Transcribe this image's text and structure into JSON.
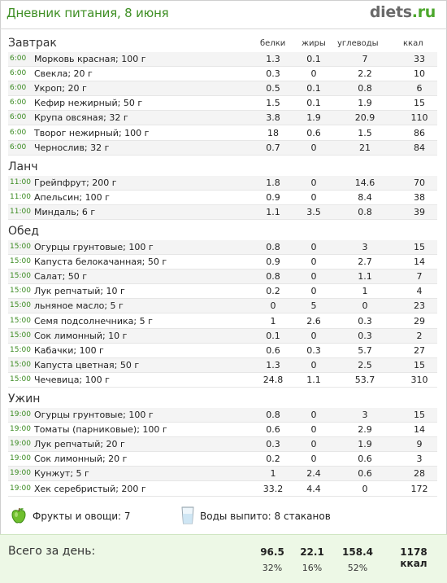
{
  "header": {
    "title": "Дневник питания, 8 июня",
    "logo_main": "diets",
    "logo_tld": ".ru"
  },
  "columns": {
    "protein": "белки",
    "fat": "жиры",
    "carbs": "углеводы",
    "kcal": "ккал"
  },
  "meals": [
    {
      "name": "Завтрак",
      "items": [
        {
          "time": "6:00",
          "food": "Морковь красная; 100 г",
          "p": "1.3",
          "f": "0.1",
          "c": "7",
          "k": "33"
        },
        {
          "time": "6:00",
          "food": "Свекла; 20 г",
          "p": "0.3",
          "f": "0",
          "c": "2.2",
          "k": "10"
        },
        {
          "time": "6:00",
          "food": "Укроп; 20 г",
          "p": "0.5",
          "f": "0.1",
          "c": "0.8",
          "k": "6"
        },
        {
          "time": "6:00",
          "food": "Кефир нежирный; 50 г",
          "p": "1.5",
          "f": "0.1",
          "c": "1.9",
          "k": "15"
        },
        {
          "time": "6:00",
          "food": "Крупа овсяная; 32 г",
          "p": "3.8",
          "f": "1.9",
          "c": "20.9",
          "k": "110"
        },
        {
          "time": "6:00",
          "food": "Творог нежирный; 100 г",
          "p": "18",
          "f": "0.6",
          "c": "1.5",
          "k": "86"
        },
        {
          "time": "6:00",
          "food": "Чернослив; 32 г",
          "p": "0.7",
          "f": "0",
          "c": "21",
          "k": "84"
        }
      ]
    },
    {
      "name": "Ланч",
      "items": [
        {
          "time": "11:00",
          "food": "Грейпфрут; 200 г",
          "p": "1.8",
          "f": "0",
          "c": "14.6",
          "k": "70"
        },
        {
          "time": "11:00",
          "food": "Апельсин; 100 г",
          "p": "0.9",
          "f": "0",
          "c": "8.4",
          "k": "38"
        },
        {
          "time": "11:00",
          "food": "Миндаль; 6 г",
          "p": "1.1",
          "f": "3.5",
          "c": "0.8",
          "k": "39"
        }
      ]
    },
    {
      "name": "Обед",
      "items": [
        {
          "time": "15:00",
          "food": "Огурцы грунтовые; 100 г",
          "p": "0.8",
          "f": "0",
          "c": "3",
          "k": "15"
        },
        {
          "time": "15:00",
          "food": "Капуста белокачанная; 50 г",
          "p": "0.9",
          "f": "0",
          "c": "2.7",
          "k": "14"
        },
        {
          "time": "15:00",
          "food": "Салат; 50 г",
          "p": "0.8",
          "f": "0",
          "c": "1.1",
          "k": "7"
        },
        {
          "time": "15:00",
          "food": "Лук репчатый; 10 г",
          "p": "0.2",
          "f": "0",
          "c": "1",
          "k": "4"
        },
        {
          "time": "15:00",
          "food": "льняное масло; 5 г",
          "p": "0",
          "f": "5",
          "c": "0",
          "k": "23"
        },
        {
          "time": "15:00",
          "food": "Семя подсолнечника; 5 г",
          "p": "1",
          "f": "2.6",
          "c": "0.3",
          "k": "29"
        },
        {
          "time": "15:00",
          "food": "Сок лимонный; 10 г",
          "p": "0.1",
          "f": "0",
          "c": "0.3",
          "k": "2"
        },
        {
          "time": "15:00",
          "food": "Кабачки; 100 г",
          "p": "0.6",
          "f": "0.3",
          "c": "5.7",
          "k": "27"
        },
        {
          "time": "15:00",
          "food": "Капуста цветная; 50 г",
          "p": "1.3",
          "f": "0",
          "c": "2.5",
          "k": "15"
        },
        {
          "time": "15:00",
          "food": "Чечевица; 100 г",
          "p": "24.8",
          "f": "1.1",
          "c": "53.7",
          "k": "310"
        }
      ]
    },
    {
      "name": "Ужин",
      "items": [
        {
          "time": "19:00",
          "food": "Огурцы грунтовые; 100 г",
          "p": "0.8",
          "f": "0",
          "c": "3",
          "k": "15"
        },
        {
          "time": "19:00",
          "food": "Томаты (парниковые); 100 г",
          "p": "0.6",
          "f": "0",
          "c": "2.9",
          "k": "14"
        },
        {
          "time": "19:00",
          "food": "Лук репчатый; 20 г",
          "p": "0.3",
          "f": "0",
          "c": "1.9",
          "k": "9"
        },
        {
          "time": "19:00",
          "food": "Сок лимонный; 20 г",
          "p": "0.2",
          "f": "0",
          "c": "0.6",
          "k": "3"
        },
        {
          "time": "19:00",
          "food": "Кунжут; 5 г",
          "p": "1",
          "f": "2.4",
          "c": "0.6",
          "k": "28"
        },
        {
          "time": "19:00",
          "food": "Хек серебристый; 200 г",
          "p": "33.2",
          "f": "4.4",
          "c": "0",
          "k": "172"
        }
      ]
    }
  ],
  "extras": {
    "fruits_veg": "Фрукты и овощи: 7",
    "water": "Воды выпито: 8 стаканов"
  },
  "summary": {
    "label": "Всего за день:",
    "protein": "96.5",
    "fat": "22.1",
    "carbs": "158.4",
    "kcal": "1178 ккал",
    "protein_pct": "32%",
    "fat_pct": "16%",
    "carbs_pct": "52%"
  },
  "colors": {
    "title_green": "#3f8f25",
    "time_green": "#3b8b22",
    "summary_bg": "#edf8e6",
    "logo_tld": "#4ca72c"
  },
  "icons": {
    "fruits": "green-apple-icon",
    "water": "water-glass-icon"
  }
}
